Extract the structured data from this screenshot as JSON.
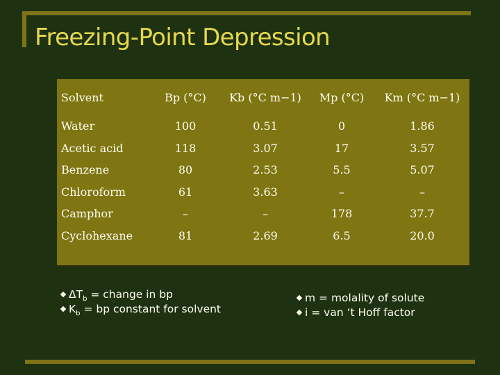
{
  "title": "Freezing-Point Depression",
  "table": {
    "headers": [
      "Solvent",
      "Bp (°C)",
      "Kb (°C m−1)",
      "Mp (°C)",
      "Km (°C m−1)"
    ],
    "rows": [
      [
        "Water",
        "100",
        "0.51",
        "0",
        "1.86"
      ],
      [
        "Acetic acid",
        "118",
        "3.07",
        "17",
        "3.57"
      ],
      [
        "Benzene",
        "80",
        "2.53",
        "5.5",
        "5.07"
      ],
      [
        "Chloroform",
        "61",
        "3.63",
        "–",
        "–"
      ],
      [
        "Camphor",
        "–",
        "–",
        "178",
        "37.7"
      ],
      [
        "Cyclohexane",
        "81",
        "2.69",
        "6.5",
        "20.0"
      ]
    ]
  },
  "notes": {
    "dtb": {
      "symbol": "ΔT",
      "sub": "b",
      "text": " = change in bp"
    },
    "kb": {
      "symbol": "K",
      "sub": "b",
      "text": " = bp constant for solvent"
    },
    "m": {
      "text": "m = molality of solute"
    },
    "i": {
      "text": "i = van ‘t Hoff factor"
    }
  },
  "colors": {
    "background": "#1e3212",
    "accent": "#7e7417",
    "title": "#e6d84a",
    "table_bg": "#7f7613",
    "text": "#fffef0"
  }
}
